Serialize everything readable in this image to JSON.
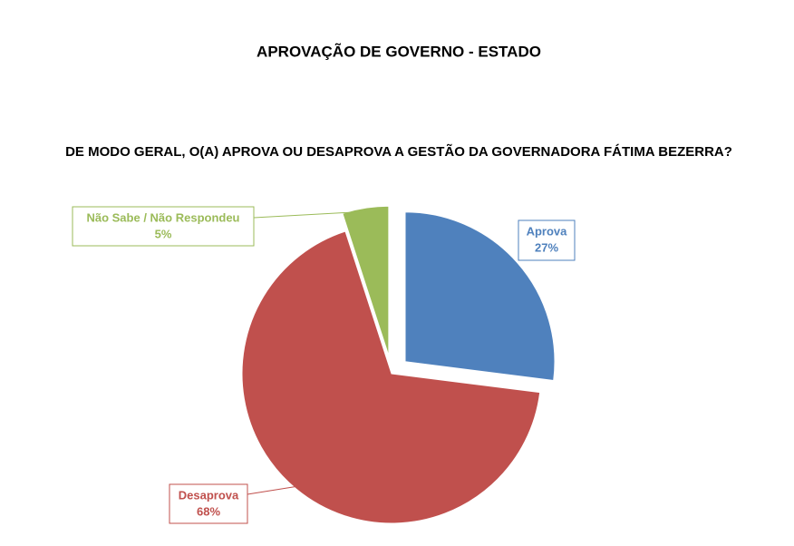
{
  "chart_data": {
    "type": "pie",
    "title": "APROVAÇÃO DE GOVERNO - ESTADO",
    "subtitle": "DE MODO GERAL, O(A) APROVA OU DESAPROVA A GESTÃO DA GOVERNADORA FÁTIMA BEZERRA?",
    "categories": [
      "Aprova",
      "Desaprova",
      "Não Sabe / Não Respondeu"
    ],
    "values": [
      27,
      68,
      5
    ],
    "value_labels": [
      "27%",
      "68%",
      "5%"
    ],
    "colors": [
      "#4f81bd",
      "#c0504d",
      "#9bbb59"
    ]
  }
}
